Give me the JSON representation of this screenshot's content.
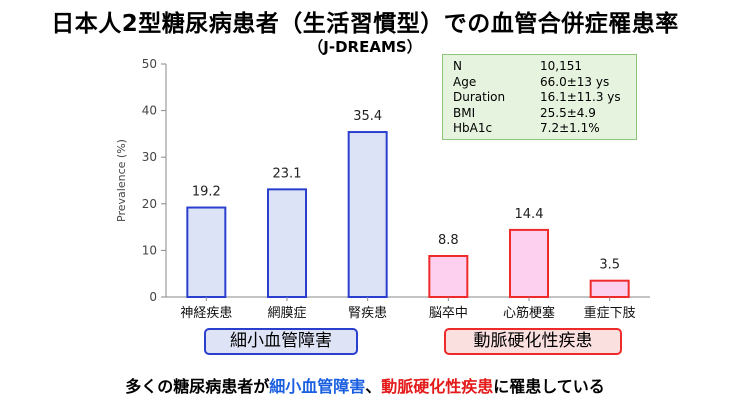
{
  "header": {
    "title": "日本人2型糖尿病患者（生活習慣型）での血管合併症罹患率",
    "subtitle": "（J-DREAMS）"
  },
  "stats": [
    {
      "key": "N",
      "value": "10,151"
    },
    {
      "key": "Age",
      "value": "66.0±13 ys"
    },
    {
      "key": "Duration",
      "value": "16.1±11.3 ys"
    },
    {
      "key": "BMI",
      "value": "25.5±4.9"
    },
    {
      "key": "HbA1c",
      "value": "7.2±1.1%"
    }
  ],
  "groups": {
    "micro": "細小血管障害",
    "macro": "動脈硬化性疾患"
  },
  "footer": {
    "part1": "多くの糖尿病患者が",
    "micro": "細小血管障害",
    "sep": "、",
    "macro": "動脈硬化性疾患",
    "part2": "に罹患している"
  },
  "colors": {
    "micro_fill": "#dce3f6",
    "micro_stroke": "#2b3fcf",
    "macro_fill": "#fdd0f0",
    "macro_stroke": "#ee2a2a"
  },
  "chart_data": {
    "type": "bar",
    "categories": [
      "神経疾患",
      "網膜症",
      "腎疾患",
      "脳卒中",
      "心筋梗塞",
      "重症下肢"
    ],
    "values": [
      19.2,
      23.1,
      35.4,
      8.8,
      14.4,
      3.5
    ],
    "value_labels": [
      "19.2",
      "23.1",
      "35.4",
      "8.8",
      "14.4",
      "3.5"
    ],
    "category_group": [
      "micro",
      "micro",
      "micro",
      "macro",
      "macro",
      "macro"
    ],
    "ylabel": "Prevalence (%)",
    "ylim": [
      0,
      50
    ],
    "yticks": [
      0,
      10,
      20,
      30,
      40,
      50
    ],
    "grid": false
  }
}
